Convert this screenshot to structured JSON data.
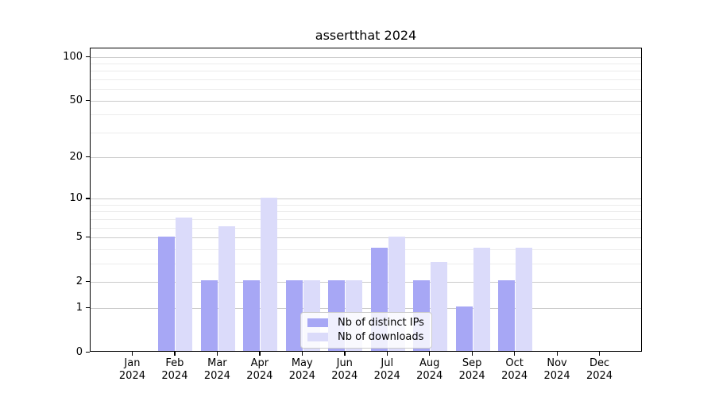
{
  "chart_data": {
    "type": "bar",
    "title": "assertthat 2024",
    "categories": [
      "Jan",
      "Feb",
      "Mar",
      "Apr",
      "May",
      "Jun",
      "Jul",
      "Aug",
      "Sep",
      "Oct",
      "Nov",
      "Dec"
    ],
    "category_year_label": "2024",
    "series": [
      {
        "name": "Nb of distinct IPs",
        "color": "#a7a7f5",
        "values": [
          0,
          5,
          2,
          2,
          2,
          2,
          4,
          2,
          1,
          2,
          0,
          0
        ]
      },
      {
        "name": "Nb of downloads",
        "color": "#dbdbfa",
        "values": [
          0,
          7,
          6,
          10,
          2,
          2,
          5,
          3,
          4,
          4,
          0,
          0
        ]
      }
    ],
    "xlabel": "",
    "ylabel": "",
    "yscale": "log1p",
    "ylim": [
      0,
      115
    ],
    "yticks_major": [
      0,
      1,
      2,
      5,
      10,
      20,
      50,
      100
    ],
    "yticks_minor": [
      3,
      4,
      6,
      7,
      8,
      9,
      30,
      40,
      60,
      70,
      80,
      90
    ],
    "grid": true,
    "legend_position": "lower center",
    "colors": {
      "grid_major": "#cbcbcb",
      "grid_minor": "#ececec",
      "spine": "#000000",
      "background": "#ffffff"
    }
  }
}
